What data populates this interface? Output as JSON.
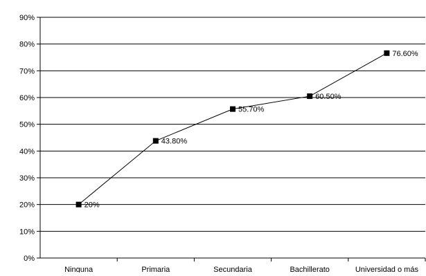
{
  "chart_data": {
    "type": "line",
    "title": "",
    "xlabel": "",
    "ylabel": "",
    "categories": [
      "Ninguna",
      "Primaria",
      "Secundaria",
      "Bachillerato",
      "Universidad o más"
    ],
    "series": [
      {
        "values": [
          20,
          43.8,
          55.7,
          60.5,
          76.6
        ],
        "labels": [
          "20%",
          "43.80%",
          "55.70%",
          "60.50%",
          "76.60%"
        ]
      }
    ],
    "y_ticks": [
      "0%",
      "10%",
      "20%",
      "30%",
      "40%",
      "50%",
      "60%",
      "70%",
      "80%",
      "90%"
    ],
    "ylim": [
      0,
      90
    ],
    "grid": true,
    "legend": "none",
    "colors": {
      "line": "#000000",
      "marker": "#000000",
      "grid": "#000000",
      "background": "#ffffff"
    }
  }
}
